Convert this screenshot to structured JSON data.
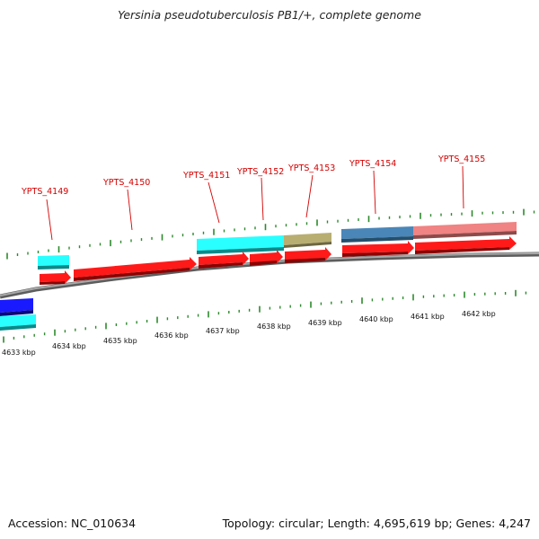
{
  "title": "Yersinia pseudotuberculosis PB1/+, complete genome",
  "footer": {
    "accession": "Accession: NC_010634",
    "info": "Topology: circular; Length: 4,695,619 bp; Genes: 4,247"
  },
  "gene_labels": [
    "YPTS_4149",
    "YPTS_4150",
    "YPTS_4151",
    "YPTS_4152",
    "YPTS_4153",
    "YPTS_4154",
    "YPTS_4155"
  ],
  "kbp_labels": [
    "4633 kbp",
    "4634 kbp",
    "4635 kbp",
    "4636 kbp",
    "4637 kbp",
    "4638 kbp",
    "4639 kbp",
    "4640 kbp",
    "4641 kbp",
    "4642 kbp"
  ],
  "colors": {
    "cds_red": "#ff1a1a",
    "cyan": "#29ffff",
    "khaki": "#b8ae72",
    "steel_blue": "#4a86b8",
    "pink": "#f08383",
    "blue": "#1a1aff",
    "tick_green": "#2d8a2d",
    "backbone": "#8a8a8a",
    "label_red": "#d40000"
  }
}
